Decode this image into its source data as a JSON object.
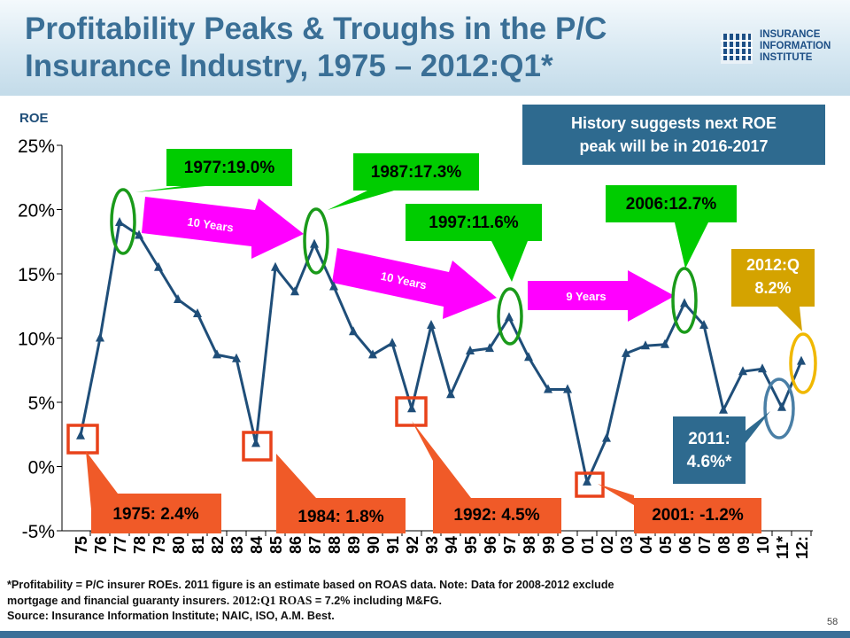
{
  "slide": {
    "title": "Profitability Peaks & Troughs in the P/C Insurance Industry, 1975 – 2012:Q1*",
    "logo_text": "INSURANCE\nINFORMATION\nINSTITUTE",
    "page_number": "58",
    "footnote": {
      "line1": "*Profitability = P/C insurer ROEs. 2011 figure is an estimate based on ROAS data. Note: Data for 2008-2012 exclude",
      "line2_prefix": "mortgage and financial guaranty insurers.",
      "line2_roas": "2012:Q1 ROAS",
      "line2_suffix": "= 7.2% including M&FG.",
      "line3": "Source: Insurance Information Institute; NAIC, ISO, A.M. Best."
    },
    "colors": {
      "title": "#3a6f96",
      "line": "#1f4e79",
      "peak_box": "#00cc00",
      "trough_box": "#f05a28",
      "arrow": "#ff00ff",
      "history_box": "#2e6a8f",
      "q1_box": "#d4a300",
      "est_box": "#2e6a8f",
      "peak_ellipse": "#1a9a1a",
      "trough_rect": "#e8421a",
      "est_ellipse": "#4a7fa6",
      "q1_ellipse": "#f0b800"
    }
  },
  "chart_data": {
    "type": "line",
    "ylabel": "ROE",
    "ylim": [
      -5,
      25
    ],
    "yticks": [
      -5,
      0,
      5,
      10,
      15,
      20,
      25
    ],
    "ytick_labels": [
      "-5%",
      "0%",
      "5%",
      "10%",
      "15%",
      "20%",
      "25%"
    ],
    "categories": [
      "75",
      "76",
      "77",
      "78",
      "79",
      "80",
      "81",
      "82",
      "83",
      "84",
      "85",
      "86",
      "87",
      "88",
      "89",
      "90",
      "91",
      "92",
      "93",
      "94",
      "95",
      "96",
      "97",
      "98",
      "99",
      "00",
      "01",
      "02",
      "03",
      "04",
      "05",
      "06",
      "07",
      "08",
      "09",
      "10",
      "11*",
      "12:"
    ],
    "values": [
      2.4,
      10.0,
      19.0,
      18.0,
      15.5,
      13.0,
      11.9,
      8.7,
      8.4,
      1.8,
      15.5,
      13.6,
      17.3,
      14.0,
      10.5,
      8.7,
      9.6,
      4.5,
      11.0,
      5.6,
      9.0,
      9.2,
      11.6,
      8.5,
      6.0,
      6.0,
      -1.2,
      2.2,
      8.8,
      9.4,
      9.5,
      12.7,
      11.0,
      4.4,
      7.4,
      7.6,
      4.6,
      8.2
    ],
    "callouts": {
      "peaks": [
        "1977:19.0%",
        "1987:17.3%",
        "1997:11.6%",
        "2006:12.7%"
      ],
      "troughs": [
        "1975: 2.4%",
        "1984: 1.8%",
        "1992: 4.5%",
        "2001: -1.2%"
      ],
      "estimate": "2011: 4.6%*",
      "q1": "2012:Q 8.2%",
      "history": "History suggests next ROE peak will be in 2016-2017",
      "arrows": [
        "10 Years",
        "10 Years",
        "9 Years"
      ]
    }
  }
}
